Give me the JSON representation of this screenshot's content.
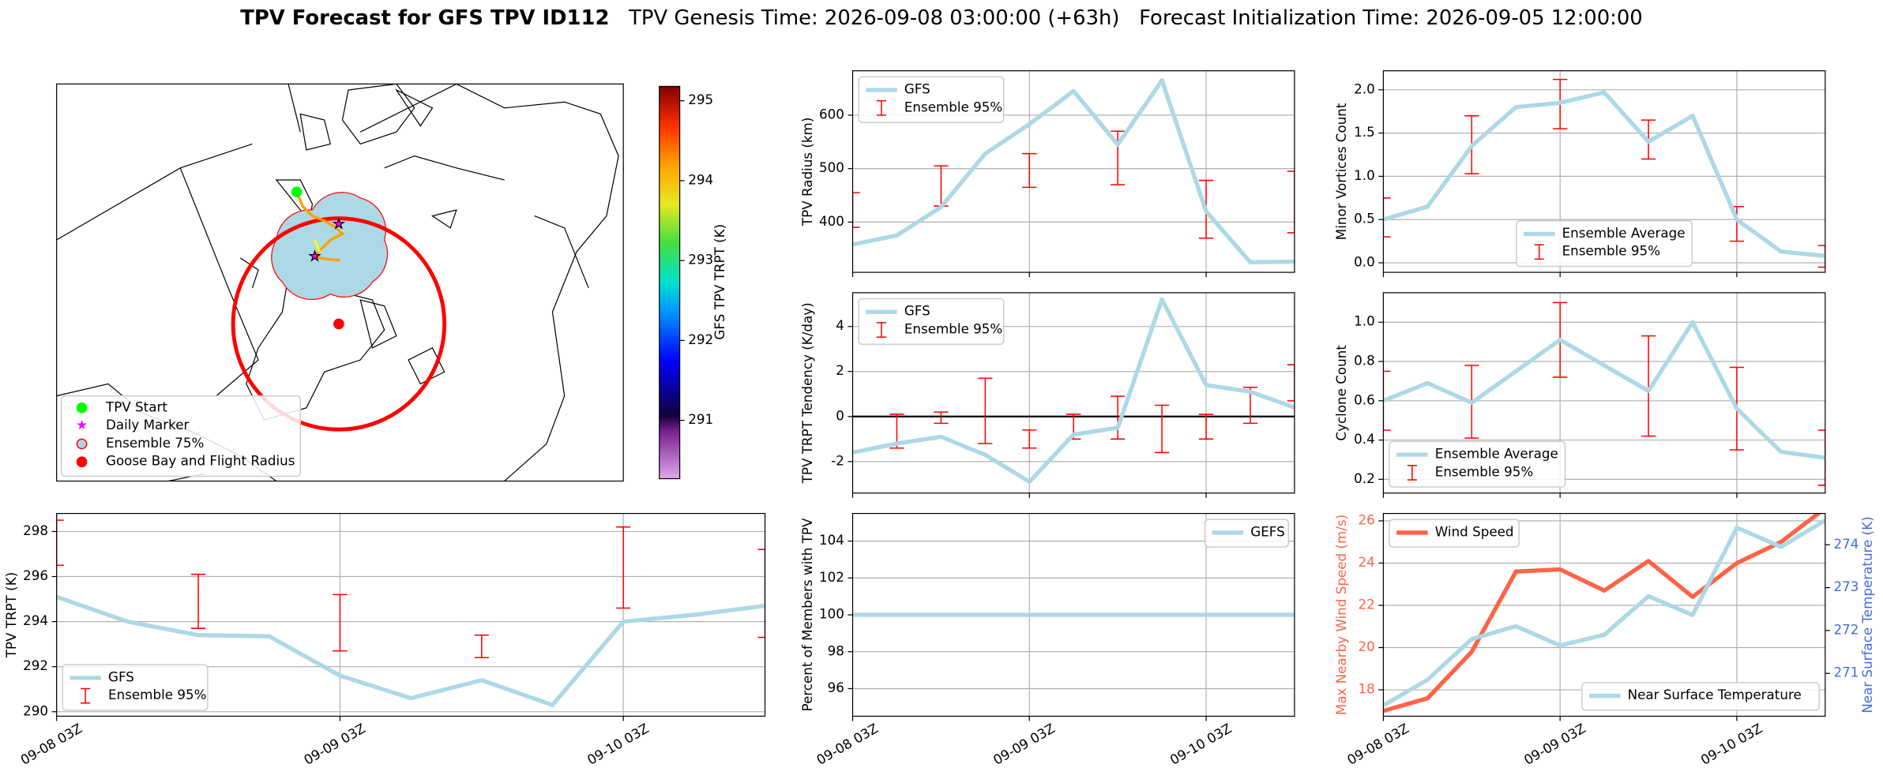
{
  "title": "TPV Forecast for GFS TPV ID112",
  "subtitle": "TPV Genesis Time: 2026-09-08 03:00:00 (+63h)   Forecast Initialization Time: 2026-09-05 12:00:00",
  "map": {
    "legend": [
      "TPV Start",
      "Daily Marker",
      "Ensemble 75%",
      "Goose Bay and Flight Radius"
    ],
    "colorbar": {
      "label": "GFS TPV TRPT (K)",
      "lim": [
        290.27,
        295.18
      ],
      "ticks": [
        291,
        292,
        293,
        294,
        295
      ]
    }
  },
  "chart_data": [
    {
      "type": "line",
      "ylabel": "TPV Radius (km)",
      "ylim": [
        306,
        683
      ],
      "yticks": [
        400,
        500,
        600
      ],
      "grid": true,
      "legend": "upper left",
      "series": [
        {
          "name": "GFS",
          "color": "#add8e6",
          "values": [
            358,
            375,
            428,
            528,
            583,
            645,
            545,
            665,
            420,
            325,
            326
          ]
        }
      ],
      "errorbars": {
        "name": "Ensemble 95%",
        "color": "#ff0000",
        "low": [
          390,
          null,
          430,
          null,
          465,
          null,
          470,
          null,
          370,
          null,
          380
        ],
        "high": [
          455,
          null,
          505,
          null,
          528,
          null,
          570,
          null,
          478,
          null,
          495
        ]
      }
    },
    {
      "type": "line",
      "ylabel": "TPV TRPT Tendency (K/day)",
      "ylim": [
        -3.4,
        5.5
      ],
      "yticks": [
        -2,
        0,
        2,
        4
      ],
      "grid": true,
      "legend": "upper left",
      "hline": 0,
      "series": [
        {
          "name": "GFS",
          "color": "#add8e6",
          "values": [
            -1.6,
            -1.2,
            -0.9,
            -1.7,
            -2.9,
            -0.8,
            -0.5,
            5.2,
            1.4,
            1.1,
            0.4
          ]
        }
      ],
      "errorbars": {
        "name": "Ensemble 95%",
        "color": "#ff0000",
        "low": [
          null,
          -1.4,
          -0.3,
          -1.2,
          -1.4,
          -1.0,
          -1.0,
          -1.6,
          -1.0,
          -0.3,
          0.7
        ],
        "high": [
          null,
          0.1,
          0.2,
          1.7,
          -0.6,
          0.1,
          0.9,
          0.5,
          0.1,
          1.3,
          2.3
        ]
      }
    },
    {
      "type": "line",
      "ylabel": "Percent of Members with TPV",
      "ylim": [
        94.5,
        105.5
      ],
      "yticks": [
        96,
        98,
        100,
        102,
        104
      ],
      "grid": true,
      "legend": "upper right",
      "categories": [
        "09-08 03Z",
        null,
        null,
        null,
        "09-09 03Z",
        null,
        null,
        null,
        "09-10 03Z",
        null,
        null
      ],
      "series": [
        {
          "name": "GEFS",
          "color": "#add8e6",
          "values": [
            100,
            100,
            100,
            100,
            100,
            100,
            100,
            100,
            100,
            100,
            100
          ]
        }
      ]
    },
    {
      "type": "line",
      "ylabel": "Minor Vortices Count",
      "ylim": [
        -0.11,
        2.22
      ],
      "yticks": [
        {
          "value": 0,
          "label": "0.0"
        },
        0.5,
        {
          "value": 1,
          "label": "1.0"
        },
        1.5,
        {
          "value": 2,
          "label": "2.0"
        }
      ],
      "grid": true,
      "legend": "lower center",
      "series": [
        {
          "name": "Ensemble Average",
          "color": "#add8e6",
          "values": [
            0.5,
            0.65,
            1.35,
            1.8,
            1.85,
            1.97,
            1.4,
            1.7,
            0.5,
            0.13,
            0.08
          ]
        }
      ],
      "errorbars": {
        "name": "Ensemble 95%",
        "color": "#ff0000",
        "low": [
          0.3,
          null,
          1.03,
          null,
          1.55,
          null,
          1.2,
          null,
          0.25,
          null,
          -0.05
        ],
        "high": [
          0.75,
          null,
          1.7,
          null,
          2.12,
          null,
          1.65,
          null,
          0.65,
          null,
          0.2
        ]
      }
    },
    {
      "type": "line",
      "ylabel": "Cyclone Count",
      "ylim": [
        0.13,
        1.15
      ],
      "yticks": [
        0.2,
        0.4,
        0.6,
        0.8,
        {
          "value": 1,
          "label": "1.0"
        }
      ],
      "grid": true,
      "legend": "lower left",
      "series": [
        {
          "name": "Ensemble Average",
          "color": "#add8e6",
          "values": [
            0.6,
            0.69,
            0.59,
            0.75,
            0.91,
            0.78,
            0.65,
            1.0,
            0.56,
            0.34,
            0.31
          ]
        }
      ],
      "errorbars": {
        "name": "Ensemble 95%",
        "color": "#ff0000",
        "low": [
          0.45,
          null,
          0.41,
          null,
          0.72,
          null,
          0.42,
          null,
          0.35,
          null,
          0.17
        ],
        "high": [
          0.75,
          null,
          0.78,
          null,
          1.1,
          null,
          0.93,
          null,
          0.77,
          null,
          0.45
        ]
      }
    },
    {
      "type": "line",
      "ylabel": "Max Nearby Wind Speed (m/s)",
      "y2label": "Near Surface Temperature (K)",
      "ylabel_color": "#ff6347",
      "y2label_color": "#4169e1",
      "ylim": [
        16.75,
        26.35
      ],
      "yticks": [
        18,
        20,
        22,
        24,
        26
      ],
      "y2lim": [
        270.0,
        274.73
      ],
      "y2ticks": [
        271,
        272,
        273,
        274
      ],
      "grid": true,
      "legend": "upper left",
      "legend2": "lower right",
      "categories": [
        "09-08 03Z",
        null,
        null,
        null,
        "09-09 03Z",
        null,
        null,
        null,
        "09-10 03Z",
        null,
        null
      ],
      "series": [
        {
          "name": "Wind Speed",
          "color": "#ff6347",
          "values": [
            17.0,
            17.6,
            19.8,
            23.6,
            23.7,
            22.7,
            24.1,
            22.4,
            24.0,
            25.0,
            26.6
          ]
        },
        {
          "name": "Near Surface Temperature",
          "color": "#add8e6",
          "axis": "y2",
          "values": [
            270.25,
            270.85,
            271.8,
            272.1,
            271.65,
            271.9,
            272.8,
            272.36,
            274.4,
            273.95,
            274.57
          ]
        }
      ]
    },
    {
      "type": "line",
      "ylabel": "TPV TRPT (K)",
      "ylim": [
        289.8,
        298.8
      ],
      "yticks": [
        290,
        292,
        294,
        296,
        298
      ],
      "grid": true,
      "legend": "lower left",
      "categories": [
        "09-08 03Z",
        null,
        null,
        null,
        "09-09 03Z",
        null,
        null,
        null,
        "09-10 03Z",
        null,
        null
      ],
      "series": [
        {
          "name": "GFS",
          "color": "#add8e6",
          "values": [
            295.1,
            294.0,
            293.4,
            293.35,
            291.6,
            290.6,
            291.4,
            290.3,
            294.0,
            294.3,
            294.7
          ]
        }
      ],
      "errorbars": {
        "name": "Ensemble 95%",
        "color": "#ff0000",
        "low": [
          296.5,
          null,
          293.7,
          null,
          292.7,
          null,
          292.4,
          null,
          294.6,
          null,
          293.3
        ],
        "high": [
          298.5,
          null,
          296.1,
          null,
          295.2,
          null,
          293.4,
          null,
          298.2,
          null,
          297.2
        ]
      }
    }
  ]
}
